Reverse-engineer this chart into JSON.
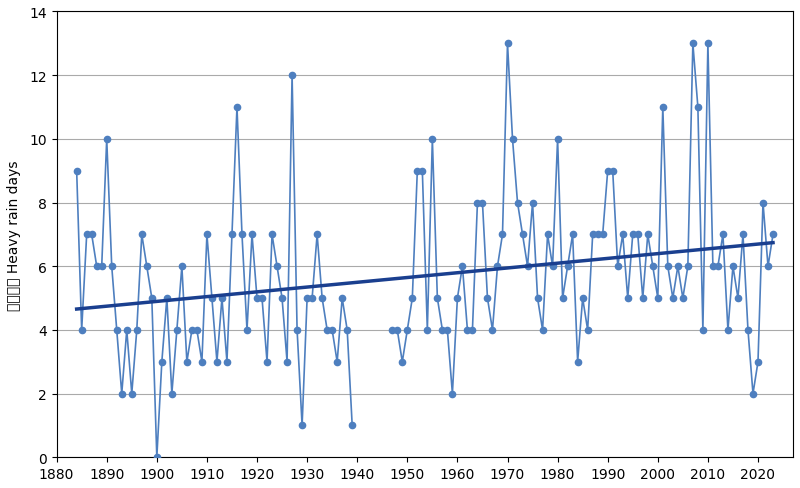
{
  "ylabel_cn": "大雨日數",
  "ylabel_en": "Heavy rain days",
  "xlim": [
    1880,
    2027
  ],
  "ylim": [
    0,
    14
  ],
  "yticks": [
    0,
    2,
    4,
    6,
    8,
    10,
    12,
    14
  ],
  "xticks": [
    1880,
    1890,
    1900,
    1910,
    1920,
    1930,
    1940,
    1950,
    1960,
    1970,
    1980,
    1990,
    2000,
    2010,
    2020
  ],
  "line_color": "#4E7FBF",
  "trend_color": "#1A3F8F",
  "bg_color": "#FFFFFF",
  "grid_color": "#AAAAAA",
  "trend_x": [
    1884,
    2023
  ],
  "data": {
    "1884": 9,
    "1885": 4,
    "1886": 7,
    "1887": 7,
    "1888": 6,
    "1889": 6,
    "1890": 10,
    "1891": 6,
    "1892": 4,
    "1893": 2,
    "1894": 4,
    "1895": 2,
    "1896": 4,
    "1897": 7,
    "1898": 6,
    "1899": 5,
    "1900": 0,
    "1901": 3,
    "1902": 5,
    "1903": 2,
    "1904": 4,
    "1905": 6,
    "1906": 3,
    "1907": 4,
    "1908": 4,
    "1909": 3,
    "1910": 7,
    "1911": 5,
    "1912": 3,
    "1913": 5,
    "1914": 3,
    "1915": 7,
    "1916": 11,
    "1917": 7,
    "1918": 4,
    "1919": 7,
    "1920": 5,
    "1921": 5,
    "1922": 3,
    "1923": 7,
    "1924": 6,
    "1925": 5,
    "1926": 3,
    "1927": 12,
    "1928": 4,
    "1929": 1,
    "1930": 5,
    "1931": 5,
    "1932": 7,
    "1933": 5,
    "1934": 4,
    "1935": 4,
    "1936": 3,
    "1937": 5,
    "1938": 4,
    "1939": 1,
    "1947": 4,
    "1948": 4,
    "1949": 3,
    "1950": 4,
    "1951": 5,
    "1952": 9,
    "1953": 9,
    "1954": 4,
    "1955": 10,
    "1956": 5,
    "1957": 4,
    "1958": 4,
    "1959": 2,
    "1960": 5,
    "1961": 6,
    "1962": 4,
    "1963": 4,
    "1964": 8,
    "1965": 8,
    "1966": 5,
    "1967": 4,
    "1968": 6,
    "1969": 7,
    "1970": 13,
    "1971": 10,
    "1972": 8,
    "1973": 7,
    "1974": 6,
    "1975": 8,
    "1976": 5,
    "1977": 4,
    "1978": 7,
    "1979": 6,
    "1980": 10,
    "1981": 5,
    "1982": 6,
    "1983": 7,
    "1984": 3,
    "1985": 5,
    "1986": 4,
    "1987": 7,
    "1988": 7,
    "1989": 7,
    "1990": 9,
    "1991": 9,
    "1992": 6,
    "1993": 7,
    "1994": 5,
    "1995": 7,
    "1996": 7,
    "1997": 5,
    "1998": 7,
    "1999": 6,
    "2000": 5,
    "2001": 11,
    "2002": 6,
    "2003": 5,
    "2004": 6,
    "2005": 5,
    "2006": 6,
    "2007": 13,
    "2008": 11,
    "2009": 4,
    "2010": 13,
    "2011": 6,
    "2012": 6,
    "2013": 7,
    "2014": 4,
    "2015": 6,
    "2016": 5,
    "2017": 7,
    "2018": 4,
    "2019": 2,
    "2020": 3,
    "2021": 8,
    "2022": 6,
    "2023": 7
  }
}
